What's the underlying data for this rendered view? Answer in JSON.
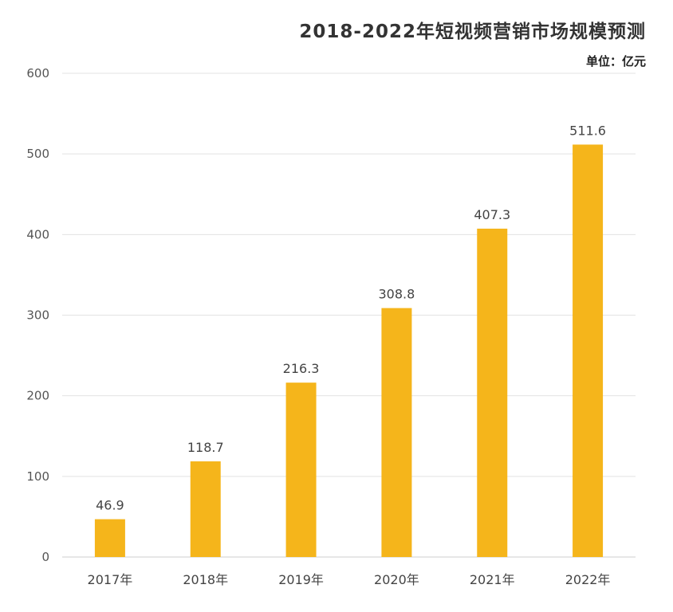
{
  "chart_data": {
    "type": "bar",
    "title": "2018-2022年短视频营销市场规模预测",
    "unit": "单位：亿元",
    "categories": [
      "2017年",
      "2018年",
      "2019年",
      "2020年",
      "2021年",
      "2022年"
    ],
    "values": [
      46.9,
      118.7,
      216.3,
      308.8,
      407.3,
      511.6
    ],
    "value_labels": [
      "46.9",
      "118.7",
      "216.3",
      "308.8",
      "407.3",
      "511.6"
    ],
    "xlabel": "",
    "ylabel": "",
    "ylim": [
      0,
      600
    ],
    "yticks": [
      "0",
      "100",
      "200",
      "300",
      "400",
      "500",
      "600"
    ],
    "grid": true,
    "bar_color": "#F5B51B",
    "grid_color": "#E3E3E3"
  }
}
